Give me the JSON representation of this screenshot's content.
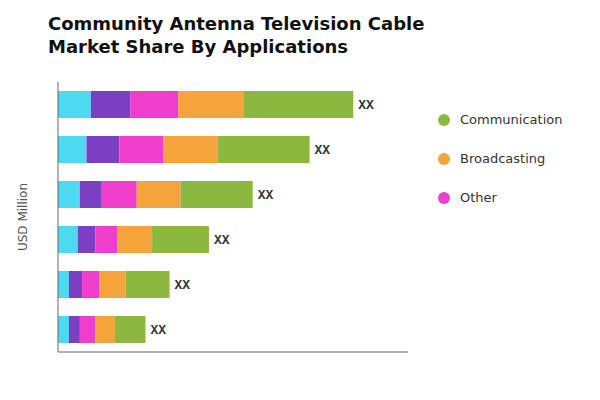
{
  "chart_data": {
    "type": "bar",
    "orientation": "horizontal",
    "stacked": true,
    "title": "Community Antenna Television Cable\nMarket Share By Applications",
    "ylabel": "USD Million",
    "categories": [
      null,
      null,
      null,
      null,
      null,
      null
    ],
    "series": [
      {
        "color": "#4DD9F0",
        "values": [
          1.5,
          1.3,
          1.0,
          0.9,
          0.5,
          0.5
        ]
      },
      {
        "color": "#7B3FC4",
        "values": [
          1.8,
          1.5,
          1.0,
          0.8,
          0.6,
          0.5
        ]
      },
      {
        "name": "Other",
        "color": "#F03ECC",
        "values": [
          2.2,
          2.0,
          1.6,
          1.0,
          0.8,
          0.7
        ]
      },
      {
        "name": "Broadcasting",
        "color": "#F5A33B",
        "values": [
          3.0,
          2.5,
          2.0,
          1.6,
          1.2,
          0.9
        ]
      },
      {
        "name": "Communication",
        "color": "#8DB840",
        "values": [
          5.0,
          4.2,
          3.3,
          2.6,
          2.0,
          1.4
        ]
      }
    ],
    "annotations": [
      "XX",
      "XX",
      "XX",
      "XX",
      "XX",
      "XX"
    ],
    "xlim": [
      0,
      16
    ],
    "tick_labels": false,
    "legend": "right",
    "grid": false
  }
}
